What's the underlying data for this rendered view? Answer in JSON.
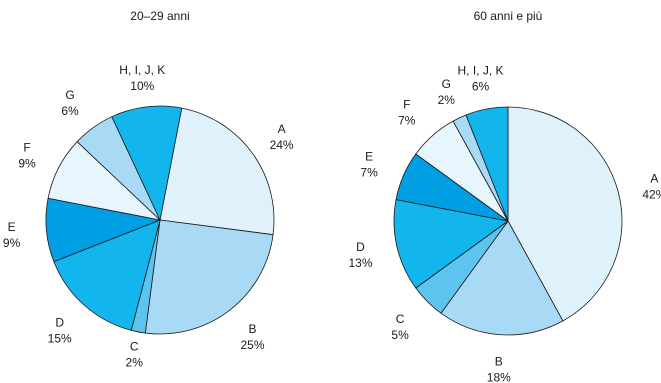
{
  "chart_data": [
    {
      "type": "pie",
      "title": "20–29 anni",
      "slices": [
        {
          "label": "A",
          "value": 24,
          "value_text": "24%",
          "color": "#dff1fb"
        },
        {
          "label": "B",
          "value": 25,
          "value_text": "25%",
          "color": "#a9daf5"
        },
        {
          "label": "C",
          "value": 2,
          "value_text": "2%",
          "color": "#5cc4ef"
        },
        {
          "label": "D",
          "value": 15,
          "value_text": "15%",
          "color": "#12b5ec"
        },
        {
          "label": "E",
          "value": 9,
          "value_text": "9%",
          "color": "#009fe3"
        },
        {
          "label": "F",
          "value": 9,
          "value_text": "9%",
          "color": "#e7f5fc"
        },
        {
          "label": "G",
          "value": 6,
          "value_text": "6%",
          "color": "#a9daf5"
        },
        {
          "label": "H, I, J, K",
          "value": 10,
          "value_text": "10%",
          "color": "#12b5ec"
        }
      ]
    },
    {
      "type": "pie",
      "title": "60 anni e più",
      "slices": [
        {
          "label": "A",
          "value": 42,
          "value_text": "42%",
          "color": "#dff1fb"
        },
        {
          "label": "B",
          "value": 18,
          "value_text": "18%",
          "color": "#a9daf5"
        },
        {
          "label": "C",
          "value": 5,
          "value_text": "5%",
          "color": "#5cc4ef"
        },
        {
          "label": "D",
          "value": 13,
          "value_text": "13%",
          "color": "#12b5ec"
        },
        {
          "label": "E",
          "value": 7,
          "value_text": "7%",
          "color": "#009fe3"
        },
        {
          "label": "F",
          "value": 7,
          "value_text": "7%",
          "color": "#e7f5fc"
        },
        {
          "label": "G",
          "value": 2,
          "value_text": "2%",
          "color": "#a9daf5"
        },
        {
          "label": "H, I, J, K",
          "value": 6,
          "value_text": "6%",
          "color": "#12b5ec"
        }
      ]
    }
  ]
}
